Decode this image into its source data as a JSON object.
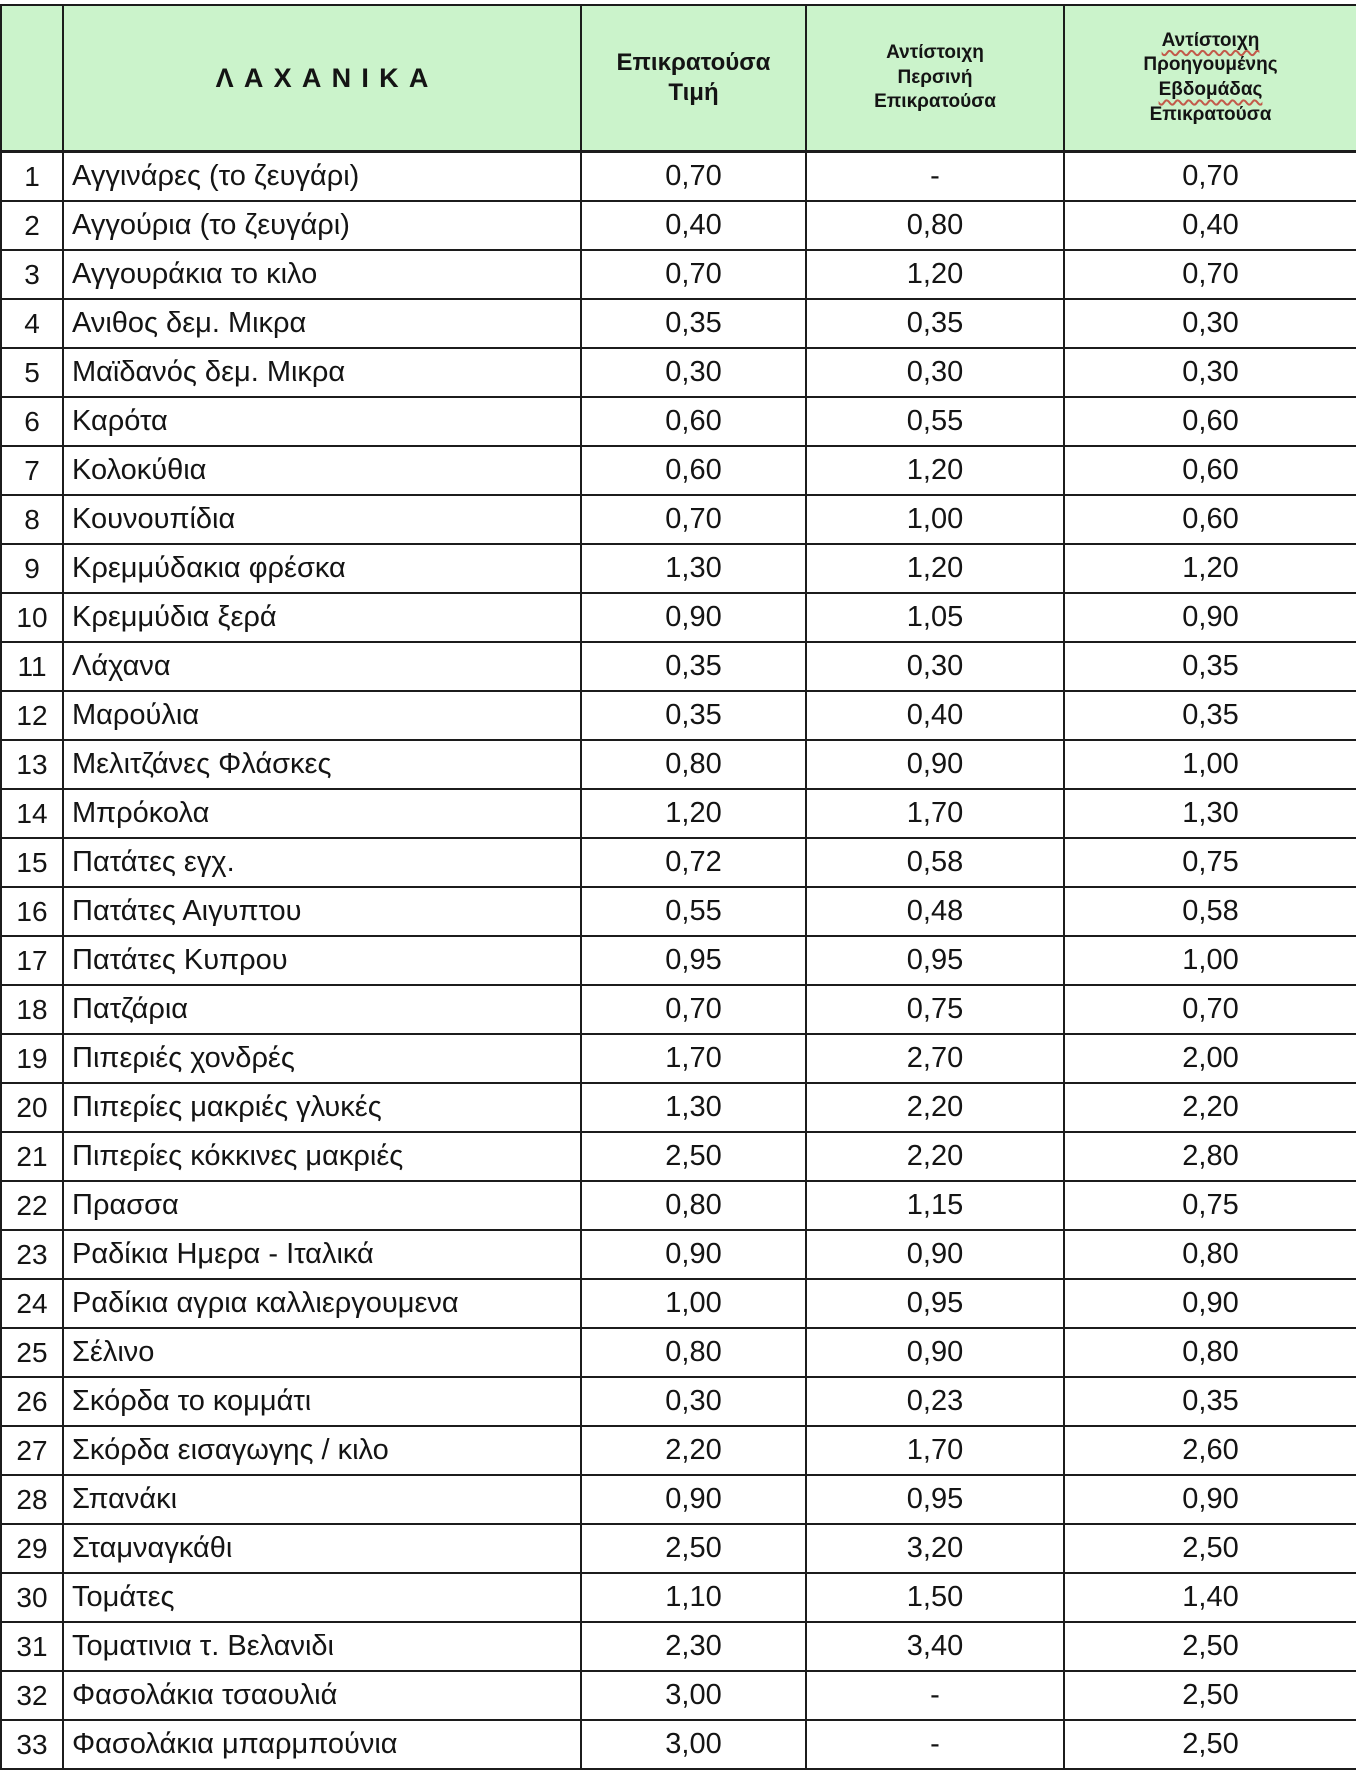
{
  "table": {
    "headers": {
      "num": "",
      "name": "ΛΑΧΑΝΙΚΑ",
      "price": [
        "Επικρατούσα",
        "Τιμή"
      ],
      "last_year": [
        "Αντίστοιχη",
        "Περσινή",
        "Επικρατούσα"
      ],
      "prev_week": [
        "Αντίστοιχη",
        "Προηγουμένης",
        "Εβδομάδας",
        "Επικρατούσα"
      ],
      "prev_week_spellcheck_flagged": [
        "Αντίστοιχη",
        "Εβδομάδας"
      ]
    },
    "rows": [
      {
        "num": "1",
        "name": "Αγγινάρες (το ζευγάρι)",
        "price": "0,70",
        "last_year": "-",
        "prev_week": "0,70"
      },
      {
        "num": "2",
        "name": "Αγγούρια (το ζευγάρι)",
        "price": "0,40",
        "last_year": "0,80",
        "prev_week": "0,40"
      },
      {
        "num": "3",
        "name": "Αγγουράκια το κιλο",
        "price": "0,70",
        "last_year": "1,20",
        "prev_week": "0,70"
      },
      {
        "num": "4",
        "name": "Ανιθος δεμ. Μικρα",
        "price": "0,35",
        "last_year": "0,35",
        "prev_week": "0,30"
      },
      {
        "num": "5",
        "name": "Μαϊδανός δεμ. Μικρα",
        "price": "0,30",
        "last_year": "0,30",
        "prev_week": "0,30"
      },
      {
        "num": "6",
        "name": "Καρότα",
        "price": "0,60",
        "last_year": "0,55",
        "prev_week": "0,60"
      },
      {
        "num": "7",
        "name": "Κολοκύθια",
        "price": "0,60",
        "last_year": "1,20",
        "prev_week": "0,60"
      },
      {
        "num": "8",
        "name": "Κουνουπίδια",
        "price": "0,70",
        "last_year": "1,00",
        "prev_week": "0,60"
      },
      {
        "num": "9",
        "name": "Κρεμμύδακια φρέσκα",
        "price": "1,30",
        "last_year": "1,20",
        "prev_week": "1,20"
      },
      {
        "num": "10",
        "name": "Κρεμμύδια ξερά",
        "price": "0,90",
        "last_year": "1,05",
        "prev_week": "0,90"
      },
      {
        "num": "11",
        "name": "Λάχανα",
        "price": "0,35",
        "last_year": "0,30",
        "prev_week": "0,35"
      },
      {
        "num": "12",
        "name": "Μαρούλια",
        "price": "0,35",
        "last_year": "0,40",
        "prev_week": "0,35"
      },
      {
        "num": "13",
        "name": "Μελιτζάνες Φλάσκες",
        "price": "0,80",
        "last_year": "0,90",
        "prev_week": "1,00"
      },
      {
        "num": "14",
        "name": "Μπρόκολα",
        "price": "1,20",
        "last_year": "1,70",
        "prev_week": "1,30"
      },
      {
        "num": "15",
        "name": "Πατάτες εγχ.",
        "price": "0,72",
        "last_year": "0,58",
        "prev_week": "0,75"
      },
      {
        "num": "16",
        "name": "Πατάτες  Αιγυπτου",
        "price": "0,55",
        "last_year": "0,48",
        "prev_week": "0,58"
      },
      {
        "num": "17",
        "name": "Πατάτες  Κυπρου",
        "price": "0,95",
        "last_year": "0,95",
        "prev_week": "1,00"
      },
      {
        "num": "18",
        "name": "Πατζάρια",
        "price": "0,70",
        "last_year": "0,75",
        "prev_week": "0,70"
      },
      {
        "num": "19",
        "name": "Πιπεριές χονδρές",
        "price": "1,70",
        "last_year": "2,70",
        "prev_week": "2,00"
      },
      {
        "num": "20",
        "name": "Πιπερίες μακριές γλυκές",
        "price": "1,30",
        "last_year": "2,20",
        "prev_week": "2,20"
      },
      {
        "num": "21",
        "name": "Πιπερίες κόκκινες μακριές",
        "price": "2,50",
        "last_year": "2,20",
        "prev_week": "2,80"
      },
      {
        "num": "22",
        "name": "Πρασσα",
        "price": "0,80",
        "last_year": "1,15",
        "prev_week": "0,75"
      },
      {
        "num": "23",
        "name": "Ραδίκια Ημερα - Ιταλικά",
        "price": "0,90",
        "last_year": "0,90",
        "prev_week": "0,80"
      },
      {
        "num": "24",
        "name": "Ραδίκια αγρια καλλιεργουμενα",
        "price": "1,00",
        "last_year": "0,95",
        "prev_week": "0,90"
      },
      {
        "num": "25",
        "name": "Σέλινο",
        "price": "0,80",
        "last_year": "0,90",
        "prev_week": "0,80"
      },
      {
        "num": "26",
        "name": "Σκόρδα το κομμάτι",
        "price": "0,30",
        "last_year": "0,23",
        "prev_week": "0,35"
      },
      {
        "num": "27",
        "name": "Σκόρδα εισαγωγης / κιλο",
        "price": "2,20",
        "last_year": "1,70",
        "prev_week": "2,60"
      },
      {
        "num": "28",
        "name": "Σπανάκι",
        "price": "0,90",
        "last_year": "0,95",
        "prev_week": "0,90"
      },
      {
        "num": "29",
        "name": "Σταμναγκάθι",
        "price": "2,50",
        "last_year": "3,20",
        "prev_week": "2,50"
      },
      {
        "num": "30",
        "name": "Τομάτες",
        "price": "1,10",
        "last_year": "1,50",
        "prev_week": "1,40"
      },
      {
        "num": "31",
        "name": "Τοματινια τ. Βελανιδι",
        "price": "2,30",
        "last_year": "3,40",
        "prev_week": "2,50"
      },
      {
        "num": "32",
        "name": "Φασολάκια τσαουλιά",
        "price": "3,00",
        "last_year": "-",
        "prev_week": "2,50"
      },
      {
        "num": "33",
        "name": "Φασολάκια μπαρμπούνια",
        "price": "3,00",
        "last_year": "-",
        "prev_week": "2,50"
      }
    ]
  },
  "colors": {
    "header_bg": "#cbf3cb",
    "border": "#1c1c1c",
    "text": "#141414",
    "spellcheck_squiggle": "#c25a4a"
  }
}
